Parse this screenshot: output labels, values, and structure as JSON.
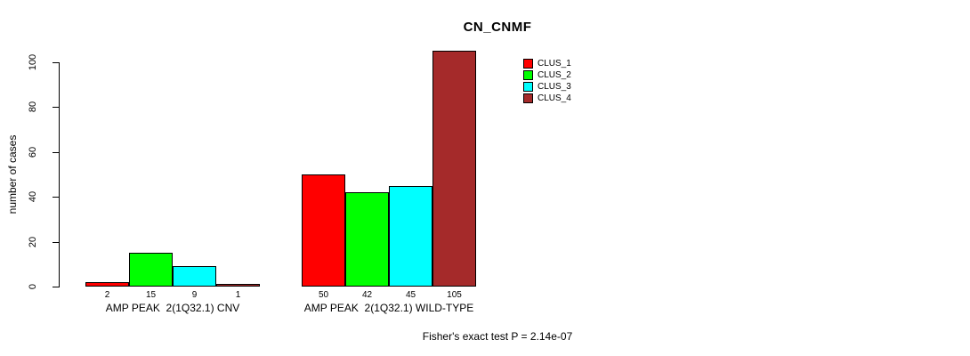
{
  "title": "CN_CNMF",
  "footer": "Fisher's exact test P = 2.14e-07",
  "chart_data": {
    "type": "bar",
    "title": "CN_CNMF",
    "xlabel": "",
    "ylabel": "number of cases",
    "ylim": [
      0,
      105
    ],
    "yticks": [
      0,
      20,
      40,
      60,
      80,
      100
    ],
    "categories": [
      "AMP PEAK  2(1Q32.1) CNV",
      "AMP PEAK  2(1Q32.1) WILD-TYPE"
    ],
    "series": [
      {
        "name": "CLUS_1",
        "color": "#FF0000",
        "values": [
          2,
          50
        ]
      },
      {
        "name": "CLUS_2",
        "color": "#00FF00",
        "values": [
          15,
          42
        ]
      },
      {
        "name": "CLUS_3",
        "color": "#00FFFF",
        "values": [
          9,
          45
        ]
      },
      {
        "name": "CLUS_4",
        "color": "#A52A2A",
        "values": [
          1,
          105
        ]
      }
    ],
    "bar_labels": [
      [
        2,
        15,
        9,
        1
      ],
      [
        50,
        42,
        45,
        105
      ]
    ],
    "legend_position": "top-right",
    "grid": false,
    "annotation": "Fisher's exact test P = 2.14e-07"
  }
}
